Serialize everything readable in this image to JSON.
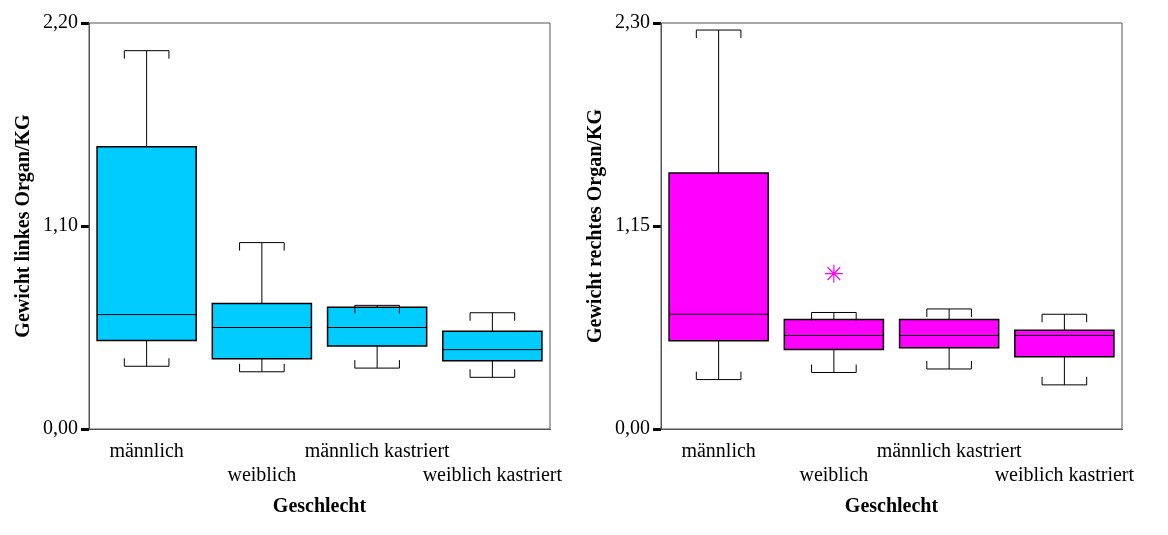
{
  "chart_data": [
    {
      "type": "box",
      "xlabel": "Geschlecht",
      "ylabel": "Gewicht linkes Organ/KG",
      "categories": [
        "männlich",
        "weiblich",
        "männlich kastriert",
        "weiblich kastriert"
      ],
      "color": "#00ccff",
      "ylim": [
        0,
        2.2
      ],
      "yticks": [
        {
          "value": 0,
          "label": "0,00"
        },
        {
          "value": 1.1,
          "label": "1,10"
        },
        {
          "value": 2.2,
          "label": "2,20"
        }
      ],
      "grid": false,
      "legend": false,
      "boxes": [
        {
          "low": 0.34,
          "q1": 0.48,
          "median": 0.62,
          "q3": 1.53,
          "high": 2.05
        },
        {
          "low": 0.31,
          "q1": 0.38,
          "median": 0.55,
          "q3": 0.68,
          "high": 1.01
        },
        {
          "low": 0.33,
          "q1": 0.45,
          "median": 0.55,
          "q3": 0.66,
          "high": 0.67
        },
        {
          "low": 0.28,
          "q1": 0.37,
          "median": 0.43,
          "q3": 0.53,
          "high": 0.63
        }
      ]
    },
    {
      "type": "box",
      "xlabel": "Geschlecht",
      "ylabel": "Gewicht rechtes Organ/KG",
      "categories": [
        "männlich",
        "weiblich",
        "männlich kastriert",
        "weiblich kastriert"
      ],
      "color": "#ff00ff",
      "ylim": [
        0,
        2.3
      ],
      "yticks": [
        {
          "value": 0,
          "label": "0,00"
        },
        {
          "value": 1.15,
          "label": "1,15"
        },
        {
          "value": 2.3,
          "label": "2,30"
        }
      ],
      "grid": false,
      "legend": false,
      "marker": "star",
      "boxes": [
        {
          "low": 0.28,
          "q1": 0.5,
          "median": 0.65,
          "q3": 1.45,
          "high": 2.26
        },
        {
          "low": 0.32,
          "q1": 0.45,
          "median": 0.53,
          "q3": 0.62,
          "high": 0.66,
          "outliers": [
            0.88
          ]
        },
        {
          "low": 0.34,
          "q1": 0.46,
          "median": 0.53,
          "q3": 0.62,
          "high": 0.68
        },
        {
          "low": 0.25,
          "q1": 0.41,
          "median": 0.53,
          "q3": 0.56,
          "high": 0.65
        }
      ]
    }
  ]
}
